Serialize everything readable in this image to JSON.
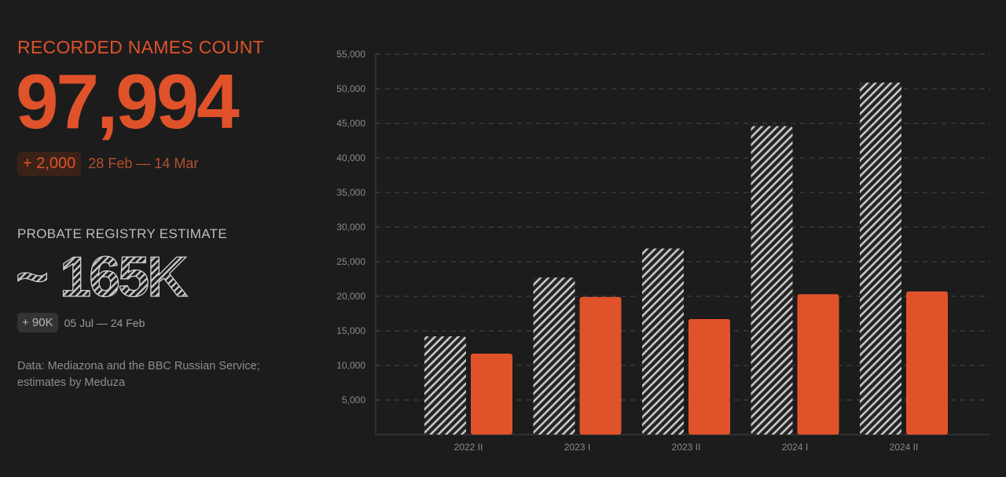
{
  "stats": {
    "recorded": {
      "label": "RECORDED NAMES COUNT",
      "value": "97,994",
      "delta": "+ 2,000",
      "period": "28 Feb — 14 Mar"
    },
    "estimate": {
      "label": "PROBATE REGISTRY ESTIMATE",
      "value": "~ 165K",
      "delta": "+ 90K",
      "period": "05 Jul — 24 Feb"
    },
    "source": "Data: Mediazona and the BBC Russian Service; estimates by Meduza"
  },
  "colors": {
    "background": "#1c1c1c",
    "accent": "#e0522a",
    "hatch": "#c8c8c8",
    "grid": "#4a4a4a"
  },
  "chart_data": {
    "type": "bar",
    "categories": [
      "2022 II",
      "2023 I",
      "2023 II",
      "2024 I",
      "2024 II"
    ],
    "series": [
      {
        "values": [
          14200,
          22700,
          26900,
          44600,
          50900
        ],
        "style": "hatched",
        "color": "#c8c8c8"
      },
      {
        "values": [
          11700,
          19900,
          16700,
          20300,
          20700
        ],
        "style": "solid",
        "color": "#e0522a"
      }
    ],
    "y_ticks": [
      "5,000",
      "10,000",
      "15,000",
      "20,000",
      "25,000",
      "30,000",
      "35,000",
      "40,000",
      "45,000",
      "50,000",
      "55,000"
    ],
    "ylim": [
      0,
      55000
    ],
    "grid": true,
    "title": "",
    "xlabel": "",
    "ylabel": ""
  }
}
